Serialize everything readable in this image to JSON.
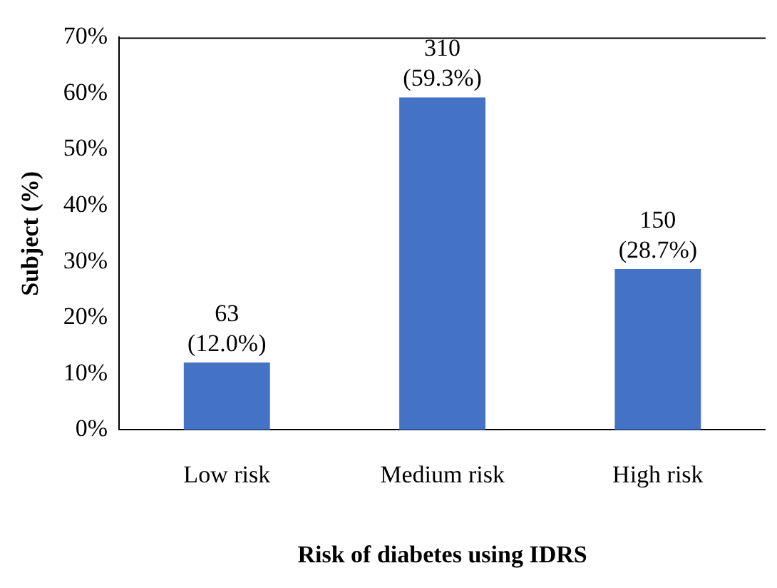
{
  "chart_data": {
    "type": "bar",
    "xlabel": "Risk of diabetes using IDRS",
    "ylabel": "Subject (%)",
    "categories": [
      "Low risk",
      "Medium risk",
      "High risk"
    ],
    "values": [
      12.0,
      59.3,
      28.7
    ],
    "color": "#4472c4",
    "value_labels": [
      "63 (12.0%)",
      "310 (59.3%)",
      "150 (28.7%)"
    ],
    "ylim": [
      0,
      70
    ],
    "yticks": [
      {
        "value": 0,
        "label": "0%"
      },
      {
        "value": 10,
        "label": "10%"
      },
      {
        "value": 20,
        "label": "20%"
      },
      {
        "value": 30,
        "label": "30%"
      },
      {
        "value": 40,
        "label": "40%"
      },
      {
        "value": 50,
        "label": "50%"
      },
      {
        "value": 60,
        "label": "60%"
      },
      {
        "value": 70,
        "label": "70%"
      }
    ],
    "grid": false,
    "legend": false
  }
}
